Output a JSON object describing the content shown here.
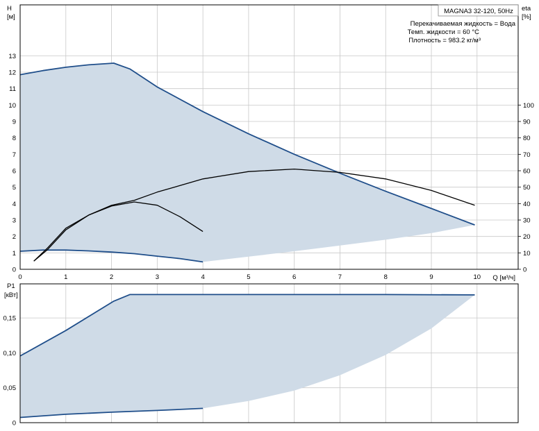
{
  "chart_data": [
    {
      "type": "line",
      "title": "MAGNA3 32-120, 50Hz",
      "info": [
        "Перекачиваемая жидкость = Вода",
        "Темп. жидкости = 60 °C",
        "Плотность = 983.2 кг/м³"
      ],
      "xlabel": "Q [м³/ч]",
      "ylabel_left": [
        "H",
        "[м]"
      ],
      "ylabel_right": [
        "eta",
        "[%]"
      ],
      "xlim": [
        0,
        10.9
      ],
      "ylim_left": [
        0,
        16.1
      ],
      "ylim_right": [
        0,
        161
      ],
      "x_ticks": [
        "0",
        "1",
        "2",
        "3",
        "4",
        "5",
        "6",
        "7",
        "8",
        "9",
        "10"
      ],
      "y_ticks_left": [
        "0",
        "1",
        "2",
        "3",
        "4",
        "5",
        "6",
        "7",
        "8",
        "9",
        "10",
        "11",
        "12",
        "13"
      ],
      "y_ticks_right": [
        "0",
        "10",
        "20",
        "30",
        "40",
        "50",
        "60",
        "70",
        "80",
        "90",
        "100"
      ],
      "grid": true,
      "area": {
        "upper": [
          [
            0,
            11.85
          ],
          [
            0.5,
            12.1
          ],
          [
            1,
            12.3
          ],
          [
            1.5,
            12.45
          ],
          [
            2.05,
            12.55
          ],
          [
            2.4,
            12.2
          ],
          [
            3,
            11.1
          ],
          [
            4,
            9.6
          ],
          [
            5,
            8.25
          ],
          [
            6,
            7.0
          ],
          [
            7,
            5.85
          ],
          [
            8,
            4.75
          ],
          [
            9,
            3.7
          ],
          [
            9.95,
            2.7
          ]
        ],
        "lower": [
          [
            0,
            1.1
          ],
          [
            0.5,
            1.17
          ],
          [
            1,
            1.17
          ],
          [
            1.5,
            1.12
          ],
          [
            2,
            1.05
          ],
          [
            2.5,
            0.95
          ],
          [
            3,
            0.8
          ],
          [
            3.5,
            0.65
          ],
          [
            4,
            0.45
          ],
          [
            5,
            0.77
          ],
          [
            6,
            1.1
          ],
          [
            7,
            1.45
          ],
          [
            8,
            1.8
          ],
          [
            9,
            2.2
          ],
          [
            9.95,
            2.7
          ]
        ]
      },
      "series": [
        {
          "color": "#1f4e8a",
          "axis": "left",
          "points": [
            [
              0,
              11.85
            ],
            [
              0.5,
              12.1
            ],
            [
              1,
              12.3
            ],
            [
              1.5,
              12.45
            ],
            [
              2.05,
              12.55
            ],
            [
              2.4,
              12.2
            ],
            [
              3,
              11.1
            ],
            [
              4,
              9.6
            ],
            [
              5,
              8.25
            ],
            [
              6,
              7.0
            ],
            [
              7,
              5.85
            ],
            [
              8,
              4.75
            ],
            [
              9,
              3.7
            ],
            [
              9.95,
              2.7
            ]
          ]
        },
        {
          "color": "#1f4e8a",
          "axis": "left",
          "points": [
            [
              0,
              1.1
            ],
            [
              0.5,
              1.17
            ],
            [
              1,
              1.17
            ],
            [
              1.5,
              1.12
            ],
            [
              2,
              1.05
            ],
            [
              2.5,
              0.95
            ],
            [
              3,
              0.8
            ],
            [
              3.5,
              0.65
            ],
            [
              4,
              0.45
            ]
          ]
        },
        {
          "color": "#000000",
          "axis": "right",
          "points": [
            [
              0.3,
              5
            ],
            [
              0.6,
              12
            ],
            [
              1,
              24
            ],
            [
              1.5,
              33
            ],
            [
              2,
              39
            ],
            [
              2.5,
              42
            ],
            [
              3,
              47
            ],
            [
              4,
              55
            ],
            [
              5,
              59.5
            ],
            [
              6,
              61
            ],
            [
              7,
              59
            ],
            [
              8,
              55
            ],
            [
              9,
              48
            ],
            [
              9.95,
              39
            ]
          ]
        },
        {
          "color": "#000000",
          "axis": "right",
          "points": [
            [
              0.3,
              5
            ],
            [
              0.6,
              13
            ],
            [
              1,
              25
            ],
            [
              1.5,
              33
            ],
            [
              2,
              38.5
            ],
            [
              2.5,
              41
            ],
            [
              3,
              39
            ],
            [
              3.5,
              32
            ],
            [
              4,
              23
            ]
          ]
        }
      ]
    },
    {
      "type": "line",
      "xlabel": "",
      "ylabel_left": [
        "P1",
        "[кВт]"
      ],
      "xlim": [
        0,
        10.9
      ],
      "ylim": [
        0,
        0.1988
      ],
      "y_ticks": [
        [
          0,
          "0"
        ],
        [
          0.05,
          "0,05"
        ],
        [
          0.1,
          "0,10"
        ],
        [
          0.15,
          "0,15"
        ]
      ],
      "grid": true,
      "area": {
        "upper": [
          [
            0,
            0.0955
          ],
          [
            1,
            0.132
          ],
          [
            2.05,
            0.174
          ],
          [
            2.4,
            0.1835
          ],
          [
            4,
            0.1835
          ],
          [
            6,
            0.1835
          ],
          [
            8,
            0.1835
          ],
          [
            9.95,
            0.183
          ]
        ],
        "lower": [
          [
            0,
            0.0075
          ],
          [
            1,
            0.012
          ],
          [
            2,
            0.015
          ],
          [
            3,
            0.0175
          ],
          [
            4,
            0.0205
          ],
          [
            5,
            0.031
          ],
          [
            6,
            0.046
          ],
          [
            7,
            0.068
          ],
          [
            8,
            0.097
          ],
          [
            9,
            0.135
          ],
          [
            9.95,
            0.183
          ]
        ]
      },
      "series": [
        {
          "color": "#1f4e8a",
          "points": [
            [
              0,
              0.0955
            ],
            [
              1,
              0.132
            ],
            [
              2.05,
              0.174
            ],
            [
              2.4,
              0.1835
            ],
            [
              4,
              0.1835
            ],
            [
              6,
              0.1835
            ],
            [
              8,
              0.1835
            ],
            [
              9.95,
              0.183
            ]
          ]
        },
        {
          "color": "#1f4e8a",
          "points": [
            [
              0,
              0.0075
            ],
            [
              1,
              0.012
            ],
            [
              2,
              0.015
            ],
            [
              3,
              0.0175
            ],
            [
              4,
              0.0205
            ]
          ]
        }
      ]
    }
  ],
  "colors": {
    "area": "#cfdbe7",
    "grid": "#c8c8c8",
    "curve_blue": "#1f4e8a",
    "curve_black": "#000000"
  }
}
